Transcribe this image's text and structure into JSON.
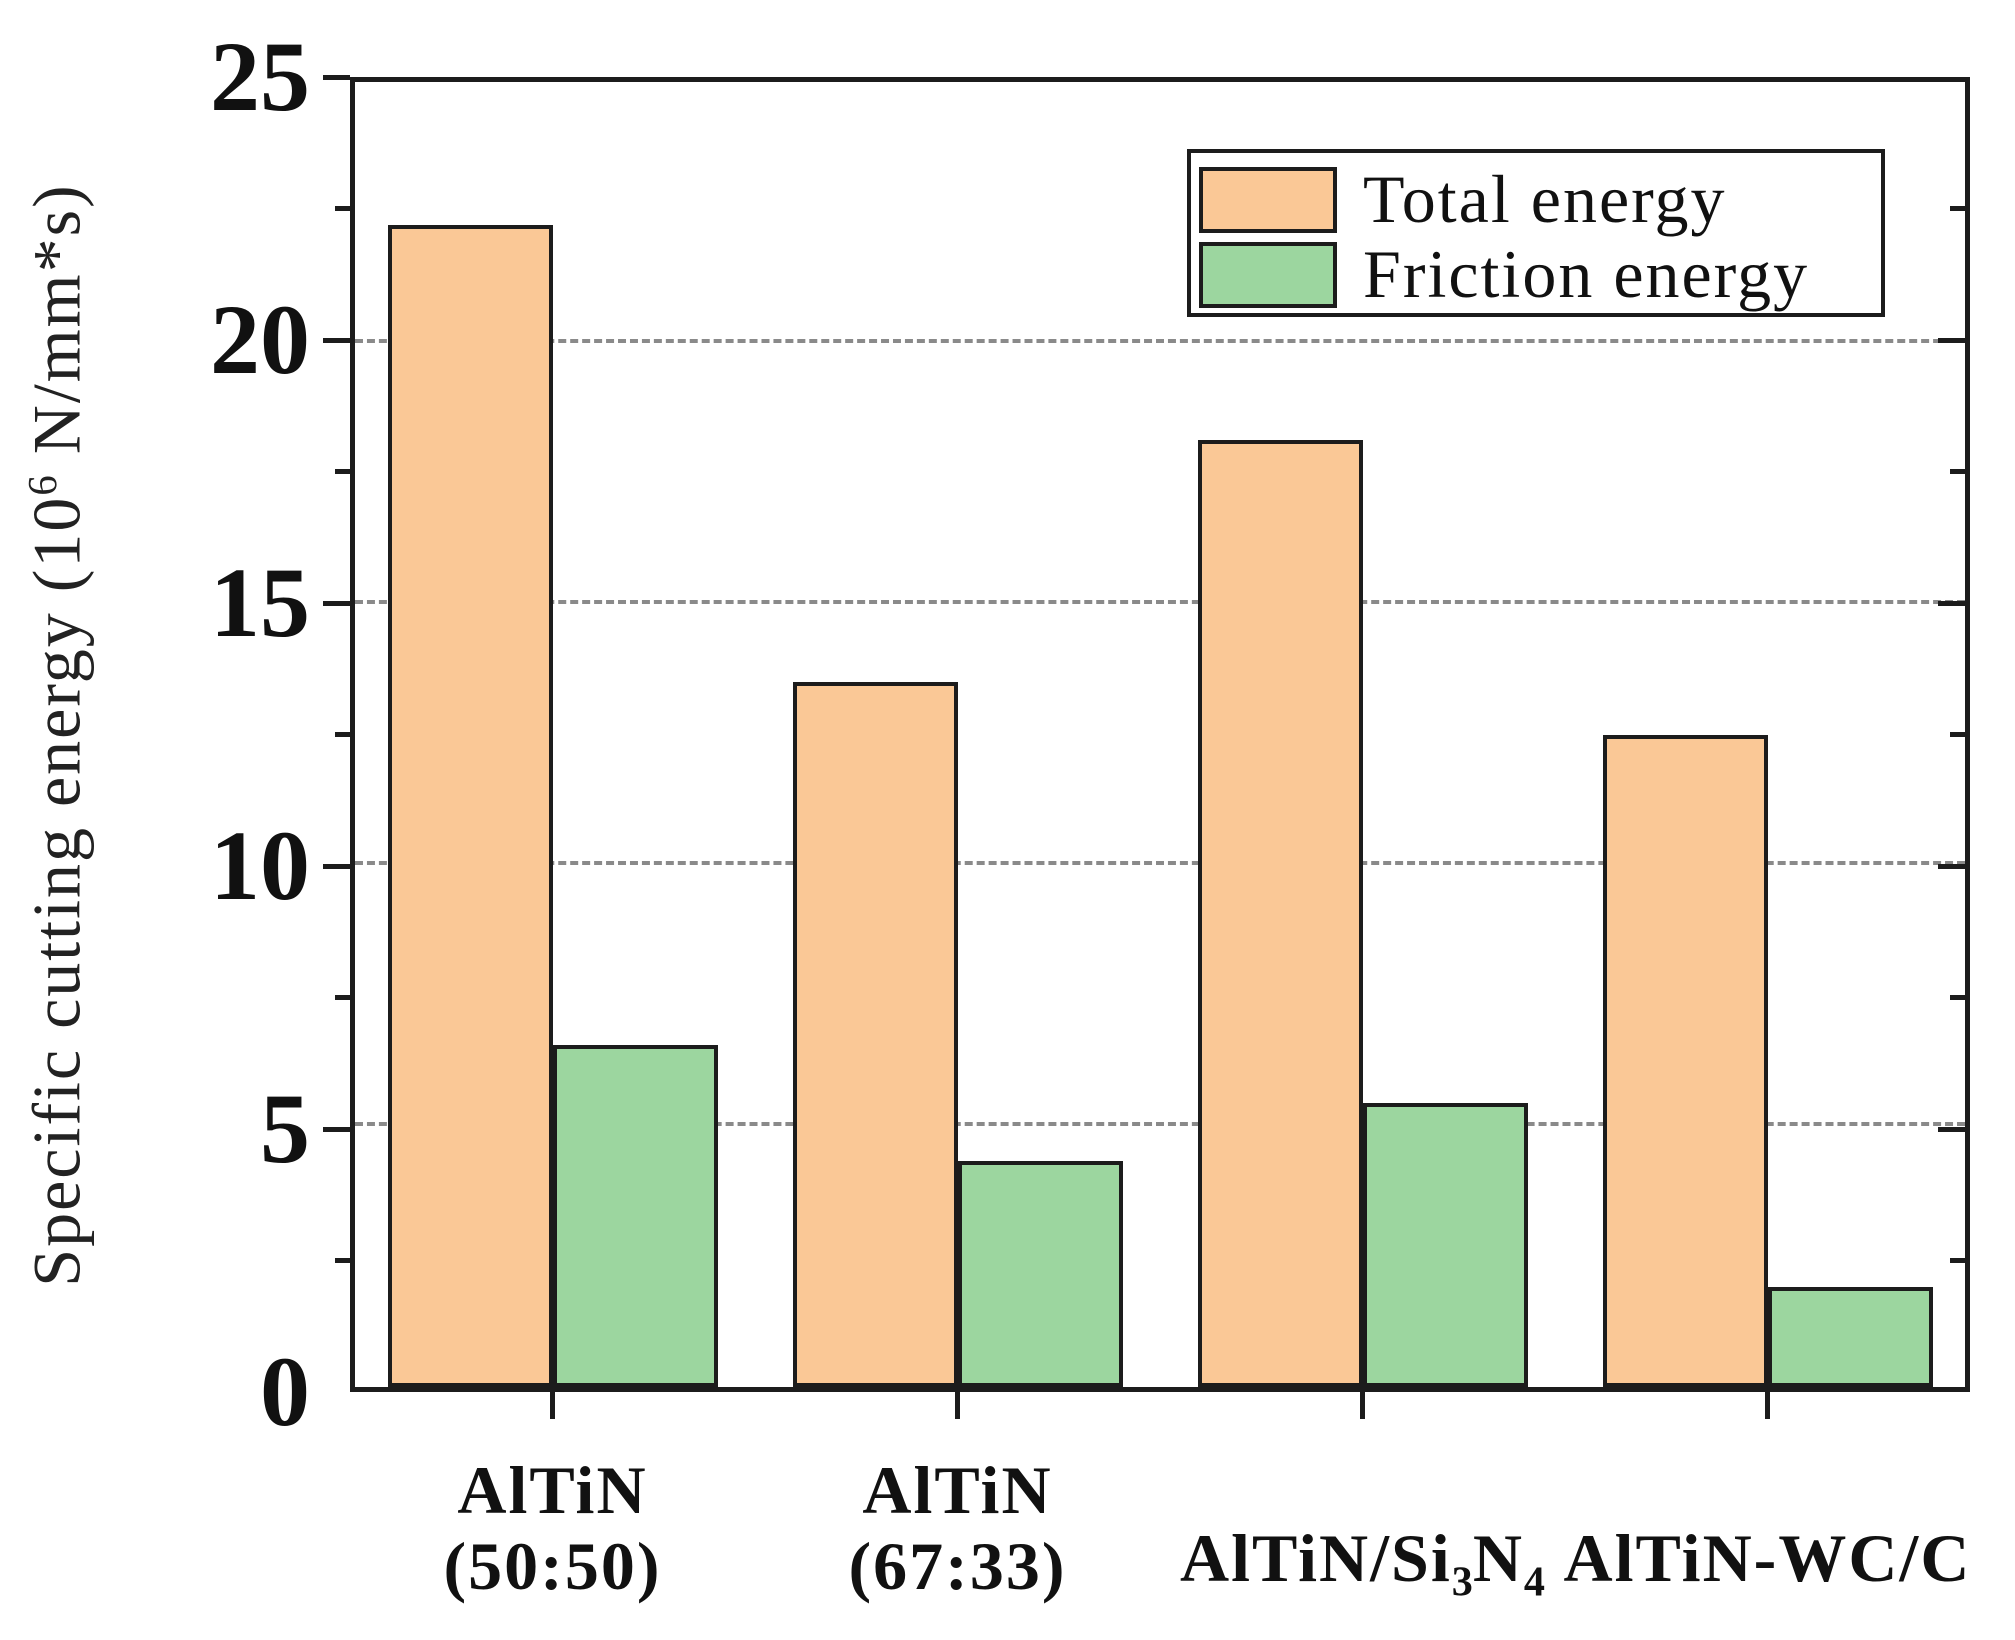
{
  "y_axis": {
    "title_prefix": "Specific cutting energy (10",
    "title_sup": "6",
    "title_suffix": " N/mm*s)",
    "tick_labels": [
      "0",
      "5",
      "10",
      "15",
      "20",
      "25"
    ]
  },
  "legend": {
    "items": [
      {
        "label": "Total energy",
        "color": "#FAC896"
      },
      {
        "label": "Friction energy",
        "color": "#9CD69F"
      }
    ]
  },
  "chart_data": {
    "type": "bar",
    "title": "",
    "xlabel": "",
    "ylabel": "Specific cutting energy (10^6 N/mm*s)",
    "ylim": [
      0,
      25
    ],
    "ytick_major": 5,
    "ytick_minor": 2.5,
    "gridlines": [
      5,
      10,
      15,
      20
    ],
    "grid_style": "horizontal dashed gray",
    "legend_position": "top-right",
    "axis_color": "#1c1c1c",
    "grid_color": "#8a8a8a",
    "categories": [
      "AlTiN (50:50)",
      "AlTiN (67:33)",
      "AlTiN/Si3N4",
      "AlTiN-WC/C"
    ],
    "category_labels": [
      {
        "lines": [
          [
            {
              "text": "AlTiN"
            }
          ],
          [
            {
              "text": "(50:50)"
            }
          ]
        ]
      },
      {
        "lines": [
          [
            {
              "text": "AlTiN"
            }
          ],
          [
            {
              "text": "(67:33)"
            }
          ]
        ]
      },
      {
        "lines": [
          [
            {
              "text": "AlTiN/Si"
            },
            {
              "text": "3",
              "sub": true
            },
            {
              "text": "N"
            },
            {
              "text": "4",
              "sub": true
            }
          ]
        ]
      },
      {
        "lines": [
          [
            {
              "text": "AlTiN-WC/C"
            }
          ]
        ]
      }
    ],
    "series": [
      {
        "name": "Total energy",
        "color": "#FAC896",
        "values": [
          22.1,
          13.4,
          18.0,
          12.4
        ]
      },
      {
        "name": "Friction energy",
        "color": "#9CD69F",
        "values": [
          6.5,
          4.3,
          5.4,
          1.9
        ]
      }
    ]
  }
}
